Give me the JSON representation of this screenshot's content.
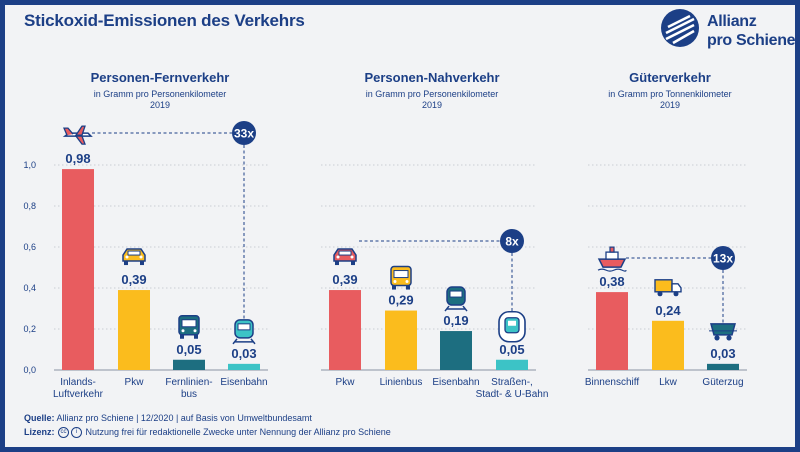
{
  "title": "Stickoxid-Emissionen des Verkehrs",
  "logo": {
    "line1": "Allianz",
    "line2": "pro Schiene"
  },
  "colors": {
    "navy": "#1c3f86",
    "red": "#e85c5f",
    "yellow": "#fbbc1d",
    "teal": "#1d6e80",
    "turquoise": "#3cc3c6",
    "grid": "#c9cdd4"
  },
  "footer": {
    "source_label": "Quelle:",
    "source_text": "Allianz pro Schiene | 12/2020 | auf Basis von Umweltbundesamt",
    "license_label": "Lizenz:",
    "license_text": "Nutzung frei für redaktionelle Zwecke unter Nennung der Allianz pro Schiene"
  },
  "chart_data": [
    {
      "type": "bar",
      "title": "Personen-Fernverkehr",
      "subtitle": "in Gramm pro Personenkilometer",
      "year": "2019",
      "ylim": [
        0,
        1.0
      ],
      "yticks": [
        "0,0",
        "0,2",
        "0,4",
        "0,6",
        "0,8",
        "1,0"
      ],
      "categories": [
        "Inlands-\nLuftverkehr",
        "Pkw",
        "Fernlinien-\nbus",
        "Eisenbahn"
      ],
      "values": [
        0.98,
        0.39,
        0.05,
        0.03
      ],
      "value_labels": [
        "0,98",
        "0,39",
        "0,05",
        "0,03"
      ],
      "bar_colors": [
        "#e85c5f",
        "#fbbc1d",
        "#1d6e80",
        "#3cc3c6"
      ],
      "icons": [
        "airplane-icon",
        "car-icon",
        "bus-icon",
        "train-icon"
      ],
      "comparison": "33x"
    },
    {
      "type": "bar",
      "title": "Personen-Nahverkehr",
      "subtitle": "in Gramm pro Personenkilometer",
      "year": "2019",
      "ylim": [
        0,
        1.0
      ],
      "categories": [
        "Pkw",
        "Linienbus",
        "Eisenbahn",
        "Straßen-,\nStadt- & U-Bahn"
      ],
      "values": [
        0.39,
        0.29,
        0.19,
        0.05
      ],
      "value_labels": [
        "0,39",
        "0,29",
        "0,19",
        "0,05"
      ],
      "bar_colors": [
        "#e85c5f",
        "#fbbc1d",
        "#1d6e80",
        "#3cc3c6"
      ],
      "icons": [
        "car-icon",
        "bus-icon",
        "train-icon",
        "tram-icon"
      ],
      "comparison": "8x"
    },
    {
      "type": "bar",
      "title": "Güterverkehr",
      "subtitle": "in Gramm pro Tonnenkilometer",
      "year": "2019",
      "ylim": [
        0,
        1.0
      ],
      "categories": [
        "Binnenschiff",
        "Lkw",
        "Güterzug"
      ],
      "values": [
        0.38,
        0.24,
        0.03
      ],
      "value_labels": [
        "0,38",
        "0,24",
        "0,03"
      ],
      "bar_colors": [
        "#e85c5f",
        "#fbbc1d",
        "#1d6e80"
      ],
      "icons": [
        "ship-icon",
        "truck-icon",
        "freight-wagon-icon"
      ],
      "comparison": "13x"
    }
  ]
}
